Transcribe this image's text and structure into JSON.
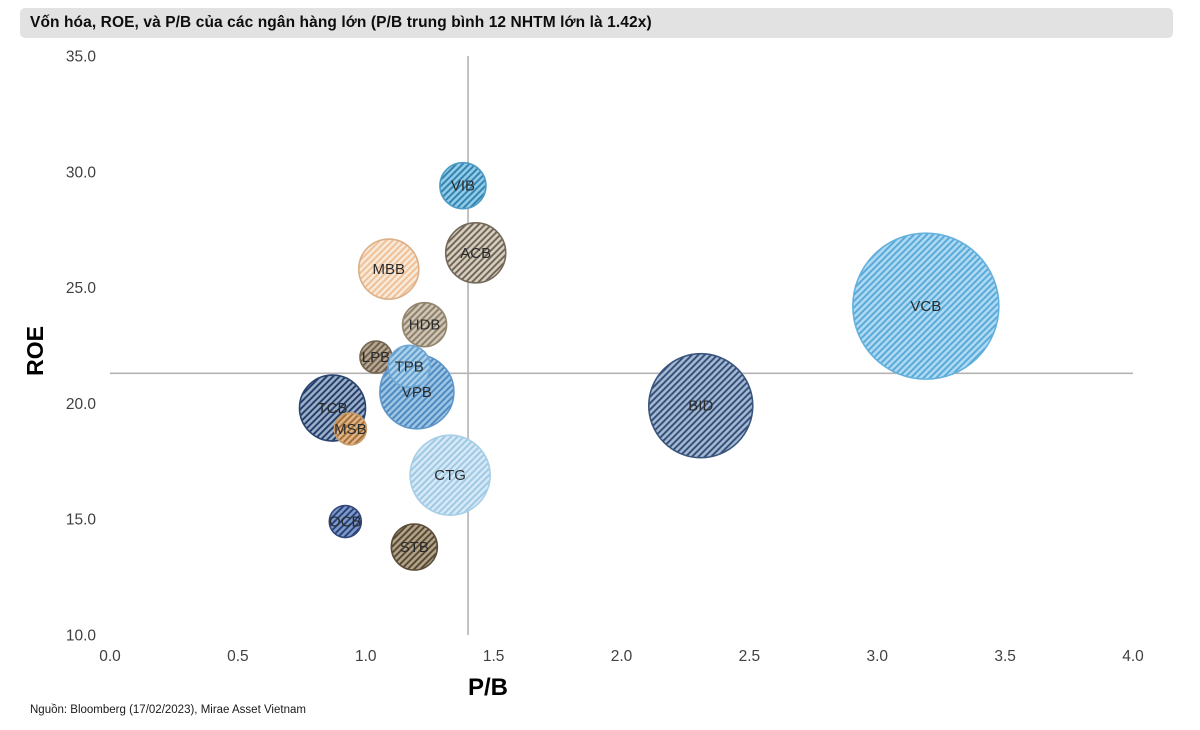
{
  "title": "Vốn hóa, ROE, và P/B của các ngân hàng lớn (P/B trung bình 12 NHTM lớn là 1.42x)",
  "source": "Nguồn: Bloomberg (17/02/2023), Mirae Asset Vietnam",
  "chart_data": {
    "type": "scatter",
    "subtype": "bubble-hatched",
    "title": "Vốn hóa, ROE, và P/B của các ngân hàng lớn (P/B trung bình 12 NHTM lớn là 1.42x)",
    "xlabel": "P/B",
    "ylabel": "ROE",
    "xlim": [
      0.0,
      4.0
    ],
    "ylim": [
      10.0,
      35.0
    ],
    "x_ticks": [
      "0.0",
      "0.5",
      "1.0",
      "1.5",
      "2.0",
      "2.5",
      "3.0",
      "3.5",
      "4.0"
    ],
    "y_ticks": [
      "10.0",
      "15.0",
      "20.0",
      "25.0",
      "30.0",
      "35.0"
    ],
    "grid": false,
    "legend": "none",
    "average_pb": 1.42,
    "crosshair": {
      "x_value": 1.4,
      "y_value": 21.3,
      "color": "#b3b3b3"
    },
    "bubble_size_meaning": "Vốn hóa (market cap)",
    "points": [
      {
        "label": "VIB",
        "pb": 1.38,
        "roe": 29.4,
        "r": 23,
        "fill": "#93cde7",
        "hatch": "#2e7fae",
        "border": "#4e9cc4"
      },
      {
        "label": "ACB",
        "pb": 1.43,
        "roe": 26.5,
        "r": 30,
        "fill": "#d8cfc1",
        "hatch": "#6b6152",
        "border": "#75695a"
      },
      {
        "label": "MBB",
        "pb": 1.09,
        "roe": 25.8,
        "r": 30,
        "fill": "#f8eada",
        "hatch": "#efbe93",
        "border": "#dcaf86"
      },
      {
        "label": "HDB",
        "pb": 1.23,
        "roe": 23.4,
        "r": 22,
        "fill": "#d0c6b6",
        "hatch": "#8a7c66",
        "border": "#93866f"
      },
      {
        "label": "LPB",
        "pb": 1.04,
        "roe": 22.0,
        "r": 16,
        "fill": "#b7a995",
        "hatch": "#6b5c48",
        "border": "#75664f"
      },
      {
        "label": "VPB",
        "pb": 1.2,
        "roe": 20.5,
        "r": 37,
        "fill": "#9dc5e5",
        "hatch": "#4a86bc",
        "border": "#5e96c8"
      },
      {
        "label": "TPB",
        "pb": 1.17,
        "roe": 21.6,
        "r": 21,
        "fill": "#acd1eb",
        "hatch": "#5e9bcc",
        "border": "#6fa8d6"
      },
      {
        "label": "TCB",
        "pb": 0.87,
        "roe": 19.8,
        "r": 33,
        "fill": "#9db1cb",
        "hatch": "#1f3864",
        "border": "#2a4470"
      },
      {
        "label": "MSB",
        "pb": 0.94,
        "roe": 18.9,
        "r": 16,
        "fill": "#dfb68c",
        "hatch": "#a16a30",
        "border": "#c79c6c"
      },
      {
        "label": "BID",
        "pb": 2.31,
        "roe": 19.9,
        "r": 52,
        "fill": "#a6bad4",
        "hatch": "#2f4a74",
        "border": "#3a557e"
      },
      {
        "label": "VCB",
        "pb": 3.19,
        "roe": 24.2,
        "r": 73,
        "fill": "#afdaf3",
        "hatch": "#55a7d7",
        "border": "#63b1de"
      },
      {
        "label": "CTG",
        "pb": 1.33,
        "roe": 16.9,
        "r": 40,
        "fill": "#d6e9f6",
        "hatch": "#9cc7e3",
        "border": "#a8cfe8"
      },
      {
        "label": "OCB",
        "pb": 0.92,
        "roe": 14.9,
        "r": 16,
        "fill": "#7c9cd0",
        "hatch": "#2a3c6e",
        "border": "#34477a"
      },
      {
        "label": "STB",
        "pb": 1.19,
        "roe": 13.8,
        "r": 23,
        "fill": "#b4a489",
        "hatch": "#514430",
        "border": "#5c4e3a"
      }
    ],
    "label_color": "#2b2b2b",
    "tick_color": "#404040"
  }
}
